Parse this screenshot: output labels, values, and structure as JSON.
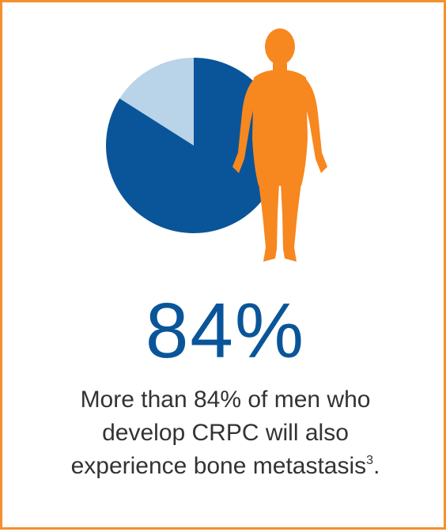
{
  "colors": {
    "border": "#f3902f",
    "human_figure": "#f7871f",
    "primary_blue": "#0a5599",
    "light_blue": "#b9d3e8",
    "text": "#333333"
  },
  "icons": {
    "figure": "human-figure-icon"
  },
  "stat": {
    "value": "84%"
  },
  "caption": {
    "line1": "More than 84% of men who",
    "line2": "develop CRPC will also",
    "line3_text": "experience bone metastasis",
    "line3_sup": "3",
    "line3_end": "."
  },
  "chart_data": {
    "type": "pie",
    "slices": [
      {
        "value": 84,
        "color": "#0a5599"
      },
      {
        "value": 16,
        "color": "#b9d3e8"
      }
    ],
    "title": "",
    "legend": false
  }
}
